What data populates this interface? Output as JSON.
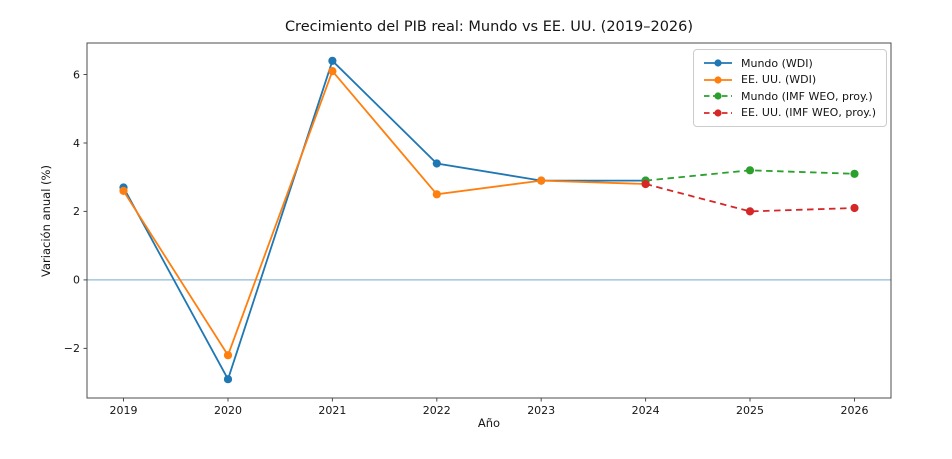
{
  "chart_data": {
    "type": "line",
    "title": "Crecimiento del PIB real: Mundo vs EE. UU. (2019–2026)",
    "xlabel": "Año",
    "ylabel": "Variación anual (%)",
    "xticks": [
      2019,
      2020,
      2021,
      2022,
      2023,
      2024,
      2025,
      2026
    ],
    "yticks": [
      -2,
      0,
      2,
      4,
      6
    ],
    "ytick_labels": [
      "−2",
      "0",
      "2",
      "4",
      "6"
    ],
    "xlim": [
      2018.65,
      2026.35
    ],
    "ylim": [
      -3.45,
      6.92
    ],
    "grid": false,
    "legend_position": "upper right",
    "zero_line": {
      "y": 0,
      "color": "#8fbbda"
    },
    "frame_color": "#4c4c4c",
    "series": [
      {
        "name": "Mundo (WDI)",
        "color": "#1f77b4",
        "style": "solid",
        "marker": "circle",
        "x": [
          2019,
          2020,
          2021,
          2022,
          2023,
          2024
        ],
        "values": [
          2.7,
          -2.9,
          6.4,
          3.4,
          2.9,
          2.9
        ]
      },
      {
        "name": "EE. UU. (WDI)",
        "color": "#ff7f0e",
        "style": "solid",
        "marker": "circle",
        "x": [
          2019,
          2020,
          2021,
          2022,
          2023,
          2024
        ],
        "values": [
          2.6,
          -2.2,
          6.1,
          2.5,
          2.9,
          2.8
        ]
      },
      {
        "name": "Mundo (IMF WEO, proy.)",
        "color": "#2ca02c",
        "style": "dashed",
        "marker": "circle",
        "x": [
          2024,
          2025,
          2026
        ],
        "values": [
          2.9,
          3.2,
          3.1
        ]
      },
      {
        "name": "EE. UU. (IMF WEO, proy.)",
        "color": "#d62728",
        "style": "dashed",
        "marker": "circle",
        "x": [
          2024,
          2025,
          2026
        ],
        "values": [
          2.8,
          2.0,
          2.1
        ]
      }
    ]
  }
}
